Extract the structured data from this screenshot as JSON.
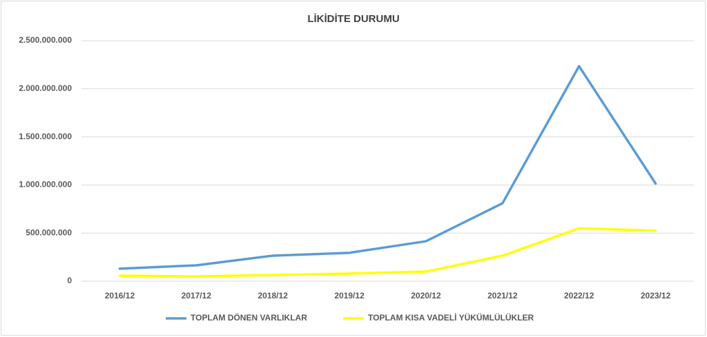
{
  "chart_data": {
    "type": "line",
    "title": "LİKİDİTE DURUMU",
    "categories": [
      "2016/12",
      "2017/12",
      "2018/12",
      "2019/12",
      "2020/12",
      "2021/12",
      "2022/12",
      "2023/12"
    ],
    "series": [
      {
        "name": "TOPLAM DÖNEN VARLIKLAR",
        "color": "#5b9bd5",
        "values": [
          130000000,
          165000000,
          265000000,
          295000000,
          415000000,
          810000000,
          2235000000,
          1015000000
        ]
      },
      {
        "name": "TOPLAM KISA VADELİ YÜKÜMLÜLÜKLER",
        "color": "#ffff00",
        "values": [
          57000000,
          50000000,
          64000000,
          79000000,
          100000000,
          265000000,
          550000000,
          525000000
        ]
      }
    ],
    "ylim": [
      0,
      2500000000
    ],
    "yticks": [
      0,
      {
        "value": 500000000,
        "label": "500.000.000"
      },
      {
        "value": 1000000000,
        "label": "1.000.000.000"
      },
      {
        "value": 1500000000,
        "label": "1.500.000.000"
      },
      {
        "value": 2000000000,
        "label": "2.000.000.000"
      },
      {
        "value": 2500000000,
        "label": "2.500.000.000"
      }
    ],
    "grid": true,
    "legend": "bottom"
  }
}
